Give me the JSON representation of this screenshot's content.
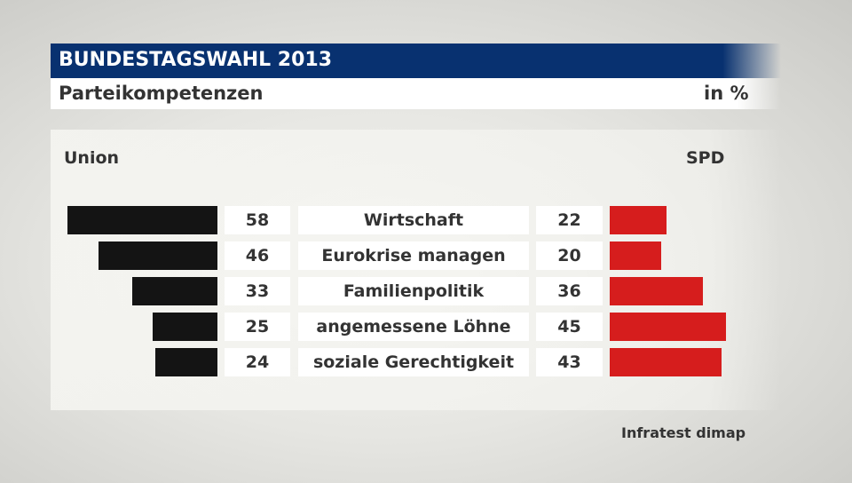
{
  "header": {
    "title": "BUNDESTAGSWAHL 2013",
    "subtitle": "Parteikompetenzen",
    "unit": "in %"
  },
  "source": "Infratest dimap",
  "colors": {
    "header": "#083170",
    "union": "#141414",
    "spd": "#d61d1d"
  },
  "chart_data": {
    "type": "bar",
    "orientation": "horizontal-butterfly",
    "categories": [
      "Wirtschaft",
      "Eurokrise managen",
      "Familienpolitik",
      "angemessene Löhne",
      "soziale Gerechtigkeit"
    ],
    "series": [
      {
        "name": "Union",
        "values": [
          58,
          46,
          33,
          25,
          24
        ]
      },
      {
        "name": "SPD",
        "values": [
          22,
          20,
          36,
          45,
          43
        ]
      }
    ],
    "unit": "in %"
  }
}
